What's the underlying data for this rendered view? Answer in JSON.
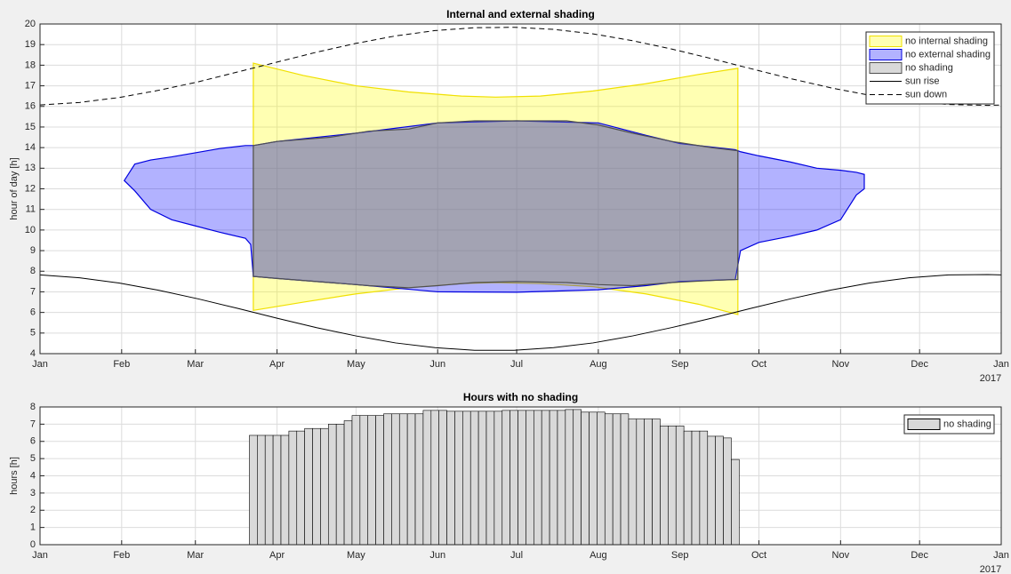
{
  "chart_data": [
    {
      "type": "area",
      "title": "Internal and external shading",
      "ylabel": "hour of day [h]",
      "x_annotation": "2017",
      "xlim": [
        0,
        365
      ],
      "xticks": [
        {
          "value": 0,
          "label": "Jan"
        },
        {
          "value": 31,
          "label": "Feb"
        },
        {
          "value": 59,
          "label": "Mar"
        },
        {
          "value": 90,
          "label": "Apr"
        },
        {
          "value": 120,
          "label": "May"
        },
        {
          "value": 151,
          "label": "Jun"
        },
        {
          "value": 181,
          "label": "Jul"
        },
        {
          "value": 212,
          "label": "Aug"
        },
        {
          "value": 243,
          "label": "Sep"
        },
        {
          "value": 273,
          "label": "Oct"
        },
        {
          "value": 304,
          "label": "Nov"
        },
        {
          "value": 334,
          "label": "Dec"
        },
        {
          "value": 365,
          "label": "Jan"
        }
      ],
      "ylim": [
        4,
        20
      ],
      "yticks": [
        4,
        5,
        6,
        7,
        8,
        9,
        10,
        11,
        12,
        13,
        14,
        15,
        16,
        17,
        18,
        19,
        20
      ],
      "grid": true,
      "legend": "top-right",
      "series": [
        {
          "name": "no internal shading",
          "kind": "band",
          "color": "#ffff00",
          "edge": "#f0e000",
          "x": [
            81,
            100,
            120,
            140,
            160,
            173,
            190,
            210,
            230,
            250,
            265
          ],
          "high": [
            18.1,
            17.5,
            17.0,
            16.7,
            16.5,
            16.45,
            16.5,
            16.75,
            17.1,
            17.55,
            17.85
          ],
          "low": [
            6.1,
            6.5,
            6.9,
            7.2,
            7.4,
            7.45,
            7.4,
            7.25,
            6.9,
            6.4,
            5.9
          ]
        },
        {
          "name": "no external shading",
          "kind": "band",
          "color": "#0000ff",
          "edge": "#0000e0",
          "x": [
            32,
            36,
            42,
            50,
            59,
            68,
            78,
            80,
            81,
            90,
            120,
            151,
            181,
            212,
            230,
            243,
            264,
            266,
            273,
            285,
            295,
            304,
            310,
            313
          ],
          "high": [
            12.4,
            13.2,
            13.4,
            13.55,
            13.75,
            13.95,
            14.1,
            14.1,
            14.1,
            14.3,
            14.7,
            15.2,
            15.3,
            15.2,
            14.6,
            14.2,
            13.9,
            13.8,
            13.6,
            13.3,
            13.0,
            12.9,
            12.8,
            12.7
          ],
          "low": [
            12.4,
            11.9,
            11.0,
            10.5,
            10.2,
            9.9,
            9.6,
            9.3,
            7.75,
            7.65,
            7.35,
            7.0,
            6.98,
            7.1,
            7.3,
            7.5,
            7.6,
            9.0,
            9.4,
            9.7,
            10.0,
            10.5,
            11.7,
            12.0
          ]
        },
        {
          "name": "no shading",
          "kind": "band",
          "color": "#808080",
          "edge": "#505050",
          "x": [
            81,
            90,
            110,
            125,
            140,
            151,
            165,
            181,
            200,
            212,
            225,
            240,
            255,
            265
          ],
          "high": [
            14.1,
            14.3,
            14.5,
            14.8,
            14.9,
            15.2,
            15.3,
            15.3,
            15.3,
            15.1,
            14.7,
            14.3,
            14.0,
            13.85
          ],
          "low": [
            7.75,
            7.65,
            7.45,
            7.3,
            7.2,
            7.3,
            7.45,
            7.5,
            7.45,
            7.35,
            7.3,
            7.45,
            7.55,
            7.6
          ]
        },
        {
          "name": "sun rise",
          "kind": "line",
          "color": "#000000",
          "x": [
            0,
            15,
            30,
            45,
            60,
            75,
            90,
            105,
            120,
            135,
            150,
            165,
            180,
            195,
            210,
            225,
            240,
            255,
            270,
            285,
            300,
            315,
            330,
            345,
            360,
            365
          ],
          "values": [
            7.82,
            7.68,
            7.43,
            7.08,
            6.66,
            6.2,
            5.72,
            5.26,
            4.86,
            4.52,
            4.29,
            4.16,
            4.16,
            4.29,
            4.52,
            4.86,
            5.27,
            5.72,
            6.2,
            6.66,
            7.08,
            7.43,
            7.68,
            7.82,
            7.84,
            7.82
          ]
        },
        {
          "name": "sun down",
          "kind": "line",
          "dashed": true,
          "color": "#000000",
          "x": [
            0,
            15,
            30,
            45,
            60,
            75,
            90,
            105,
            120,
            135,
            150,
            165,
            180,
            195,
            210,
            225,
            240,
            255,
            270,
            285,
            300,
            315,
            330,
            345,
            360,
            365
          ],
          "values": [
            16.07,
            16.19,
            16.43,
            16.78,
            17.19,
            17.67,
            18.15,
            18.63,
            19.06,
            19.42,
            19.68,
            19.82,
            19.84,
            19.74,
            19.52,
            19.19,
            18.78,
            18.32,
            17.83,
            17.35,
            16.91,
            16.54,
            16.26,
            16.09,
            16.05,
            16.07
          ]
        }
      ]
    },
    {
      "type": "bar",
      "title": "Hours with no shading",
      "ylabel": "hours [h]",
      "x_annotation": "2017",
      "xlim": [
        0,
        365
      ],
      "xticks": [
        {
          "value": 0,
          "label": "Jan"
        },
        {
          "value": 31,
          "label": "Feb"
        },
        {
          "value": 59,
          "label": "Mar"
        },
        {
          "value": 90,
          "label": "Apr"
        },
        {
          "value": 120,
          "label": "May"
        },
        {
          "value": 151,
          "label": "Jun"
        },
        {
          "value": 181,
          "label": "Jul"
        },
        {
          "value": 212,
          "label": "Aug"
        },
        {
          "value": 243,
          "label": "Sep"
        },
        {
          "value": 273,
          "label": "Oct"
        },
        {
          "value": 304,
          "label": "Nov"
        },
        {
          "value": 334,
          "label": "Dec"
        },
        {
          "value": 365,
          "label": "Jan"
        }
      ],
      "ylim": [
        0,
        8
      ],
      "yticks": [
        0,
        1,
        2,
        3,
        4,
        5,
        6,
        7,
        8
      ],
      "grid": true,
      "legend": "top-right",
      "bar_width": 3,
      "series": [
        {
          "name": "no shading",
          "kind": "bar",
          "color": "#d9d9d9",
          "edge": "#000000",
          "x": [
            81,
            84,
            87,
            90,
            93,
            96,
            99,
            102,
            105,
            108,
            111,
            114,
            117,
            120,
            123,
            126,
            129,
            132,
            135,
            138,
            141,
            144,
            147,
            150,
            153,
            156,
            159,
            162,
            165,
            168,
            171,
            174,
            177,
            180,
            183,
            186,
            189,
            192,
            195,
            198,
            201,
            204,
            207,
            210,
            213,
            216,
            219,
            222,
            225,
            228,
            231,
            234,
            237,
            240,
            243,
            246,
            249,
            252,
            255,
            258,
            261,
            264
          ],
          "values": [
            6.35,
            6.35,
            6.35,
            6.35,
            6.35,
            6.6,
            6.6,
            6.75,
            6.75,
            6.75,
            7.0,
            7.0,
            7.2,
            7.5,
            7.5,
            7.5,
            7.5,
            7.6,
            7.6,
            7.6,
            7.6,
            7.6,
            7.8,
            7.8,
            7.8,
            7.75,
            7.75,
            7.75,
            7.75,
            7.75,
            7.75,
            7.75,
            7.8,
            7.8,
            7.8,
            7.8,
            7.8,
            7.8,
            7.8,
            7.8,
            7.85,
            7.85,
            7.7,
            7.7,
            7.7,
            7.6,
            7.6,
            7.6,
            7.3,
            7.3,
            7.3,
            7.3,
            6.9,
            6.9,
            6.9,
            6.6,
            6.6,
            6.6,
            6.3,
            6.3,
            6.2,
            4.95
          ]
        }
      ]
    }
  ]
}
